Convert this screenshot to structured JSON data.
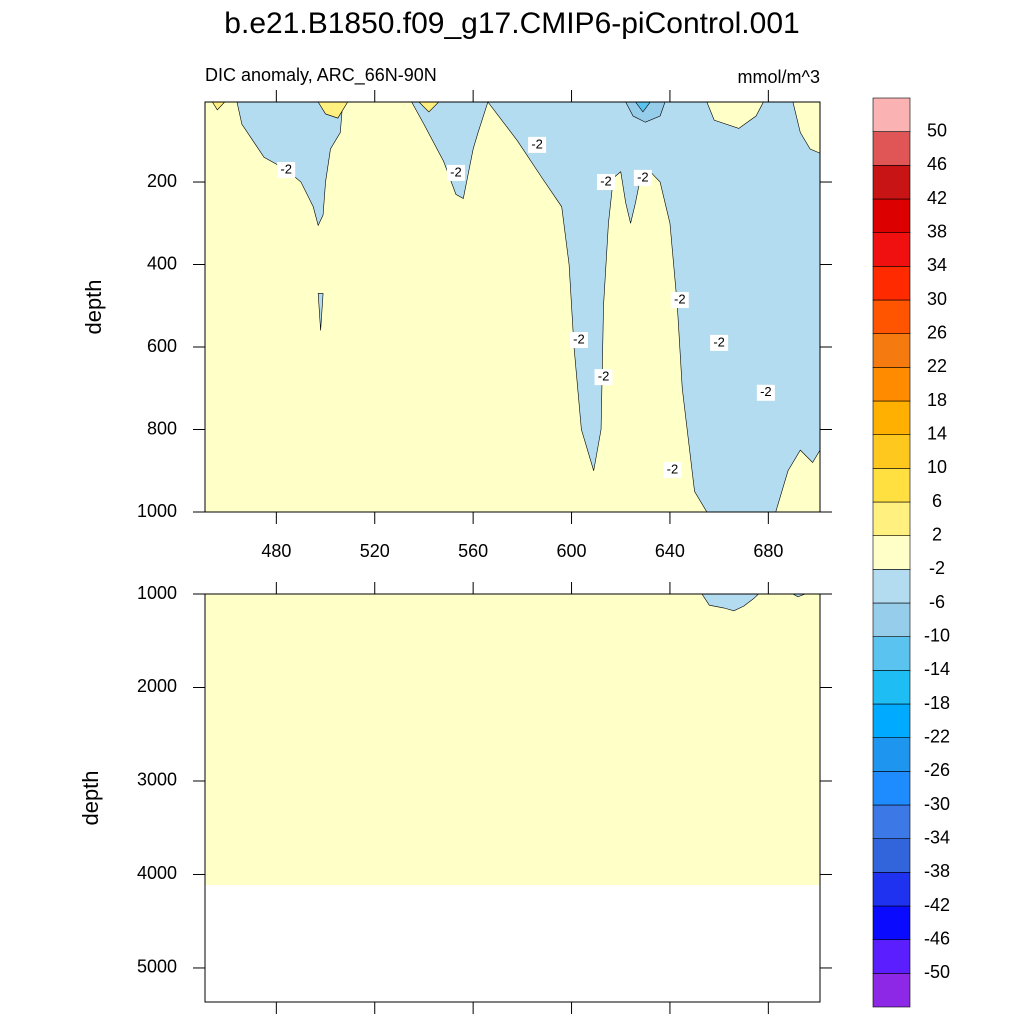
{
  "chart_data": {
    "type": "contour",
    "title": "b.e21.B1850.f09_g17.CMIP6-piControl.001",
    "colorbar": {
      "levels": [
        -50,
        -46,
        -42,
        -38,
        -34,
        -30,
        -26,
        -22,
        -18,
        -14,
        -10,
        -6,
        -2,
        2,
        6,
        10,
        14,
        18,
        22,
        26,
        30,
        34,
        38,
        42,
        46,
        50
      ],
      "colors": [
        "#8c28e6",
        "#5a1eff",
        "#0a0aff",
        "#1e32f0",
        "#3264dc",
        "#3c78e6",
        "#1e8cff",
        "#1e96f0",
        "#00aaff",
        "#1ebef5",
        "#5ac3f0",
        "#96cdeb",
        "#b4dcf0",
        "#ffffc8",
        "#fff080",
        "#ffe040",
        "#ffc81e",
        "#ffb000",
        "#ff8c00",
        "#f57a10",
        "#ff5500",
        "#ff2a00",
        "#f01010",
        "#dc0000",
        "#c81414",
        "#e05555",
        "#fab2b2"
      ]
    },
    "panels": [
      {
        "subtitle_left": "DIC anomaly, ARC_66N-90N",
        "subtitle_right": "mmol/m^3",
        "ylabel": "depth",
        "y_reversed": true,
        "xlim": [
          451,
          701
        ],
        "xticks": [
          480,
          520,
          560,
          600,
          640,
          680
        ],
        "xtick_labels": true,
        "ylim": [
          6,
          1000
        ],
        "yticks": [
          200,
          400,
          600,
          800,
          1000
        ],
        "regions": [
          {
            "range": [
              -2,
              2
            ],
            "x": [
              451,
              701,
              701,
              451
            ],
            "y": [
              6,
              6,
              1000,
              1000
            ]
          },
          {
            "range": [
              -6,
              -2
            ],
            "x": [
              464,
              466,
              475,
              484,
              490,
              495,
              497,
              499,
              500,
              502,
              506,
              507
            ],
            "y": [
              6,
              60,
              140,
              170,
              200,
              260,
              305,
              280,
              200,
              120,
              80,
              6
            ]
          },
          {
            "range": [
              -6,
              -2
            ],
            "x": [
              535,
              540,
              548,
              553,
              556,
              558,
              560,
              562,
              566
            ],
            "y": [
              6,
              60,
              150,
              230,
              240,
              180,
              120,
              80,
              6
            ]
          },
          {
            "range": [
              -6,
              -2
            ],
            "x": [
              566,
              578,
              588,
              596,
              599,
              601,
              604,
              609,
              612,
              613,
              615,
              617,
              620,
              622,
              624,
              626,
              628,
              632,
              636,
              640,
              643,
              645,
              648,
              650,
              655,
              683,
              688,
              693,
              698,
              701,
              701
            ],
            "y": [
              6,
              100,
              190,
              260,
              400,
              600,
              800,
              900,
              800,
              500,
              300,
              190,
              175,
              250,
              300,
              250,
              190,
              175,
              200,
              300,
              500,
              700,
              850,
              950,
              1000,
              1000,
              900,
              850,
              880,
              850,
              6
            ]
          },
          {
            "range": [
              -2,
              2
            ],
            "x": [
              655,
              658,
              668,
              675,
              678
            ],
            "y": [
              6,
              50,
              70,
              40,
              6
            ]
          },
          {
            "range": [
              -2,
              2
            ],
            "x": [
              690,
              693,
              697,
              701,
              701
            ],
            "y": [
              6,
              80,
              120,
              130,
              6
            ]
          },
          {
            "range": [
              -10,
              -6
            ],
            "x": [
              622,
              625,
              630,
              636,
              638
            ],
            "y": [
              6,
              40,
              55,
              40,
              6
            ]
          },
          {
            "range": [
              -14,
              -10
            ],
            "x": [
              626,
              629,
              632
            ],
            "y": [
              6,
              30,
              6
            ]
          },
          {
            "range": [
              2,
              6
            ],
            "x": [
              497,
              500,
              505,
              509
            ],
            "y": [
              6,
              35,
              45,
              6
            ]
          },
          {
            "range": [
              2,
              6
            ],
            "x": [
              538,
              542,
              546
            ],
            "y": [
              6,
              30,
              6
            ]
          },
          {
            "range": [
              2,
              6
            ],
            "x": [
              454,
              456,
              459
            ],
            "y": [
              6,
              25,
              6
            ]
          },
          {
            "range": [
              -6,
              -2
            ],
            "x": [
              497,
              498,
              499
            ],
            "y": [
              470,
              560,
              470
            ]
          }
        ],
        "contour_labels": [
          {
            "x": 484,
            "y": 171,
            "value": -2
          },
          {
            "x": 553,
            "y": 178,
            "value": -2
          },
          {
            "x": 586,
            "y": 110,
            "value": -2
          },
          {
            "x": 614,
            "y": 200,
            "value": -2
          },
          {
            "x": 629,
            "y": 190,
            "value": -2
          },
          {
            "x": 644,
            "y": 486,
            "value": -2
          },
          {
            "x": 603,
            "y": 583,
            "value": -2
          },
          {
            "x": 613,
            "y": 673,
            "value": -2
          },
          {
            "x": 660,
            "y": 590,
            "value": -2
          },
          {
            "x": 679,
            "y": 711,
            "value": -2
          },
          {
            "x": 641,
            "y": 898,
            "value": -2
          }
        ]
      },
      {
        "ylabel": "depth",
        "y_reversed": true,
        "xlim": [
          451,
          701
        ],
        "xticks": [
          480,
          520,
          560,
          600,
          640,
          680
        ],
        "xtick_labels": false,
        "ylim": [
          1000,
          5364
        ],
        "yticks": [
          1000,
          2000,
          3000,
          4000,
          5000
        ],
        "regions": [
          {
            "range": [
              -2,
              2
            ],
            "x": [
              451,
              701,
              701,
              451
            ],
            "y": [
              1000,
              1000,
              4112,
              4112
            ]
          },
          {
            "range": [
              -6,
              -2
            ],
            "x": [
              653,
              656,
              662,
              666,
              670,
              674,
              676
            ],
            "y": [
              1000,
              1120,
              1150,
              1180,
              1130,
              1050,
              1000
            ]
          },
          {
            "range": [
              -6,
              -2
            ],
            "x": [
              690,
              692,
              695
            ],
            "y": [
              1000,
              1030,
              1000
            ]
          }
        ],
        "contour_labels": []
      }
    ]
  }
}
